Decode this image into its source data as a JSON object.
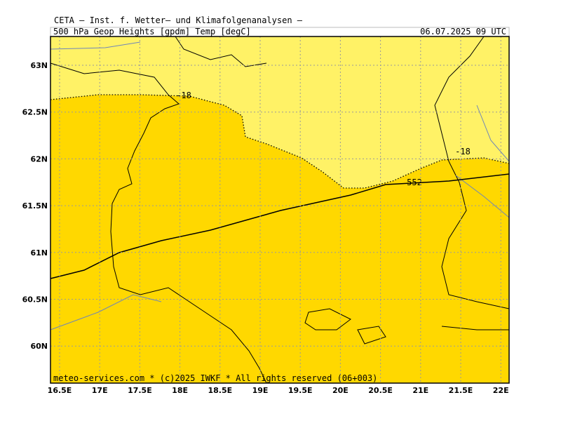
{
  "header": {
    "title": "CETA — Inst. f. Wetter— und Klimafolgenanalysen —",
    "field": "500_hPa_Geop_Heights_[gpdm]_Temp_[degC]",
    "valid": "06.07.2025 09 UTC"
  },
  "axes": {
    "longitudes": [
      "16.5E",
      "17E",
      "17.5E",
      "18E",
      "18.5E",
      "19E",
      "19.5E",
      "20E",
      "20.5E",
      "21E",
      "21.5E",
      "22E"
    ],
    "latitudes": [
      "63N",
      "62.5N",
      "62N",
      "61.5N",
      "61N",
      "60.5N",
      "60N"
    ]
  },
  "contour_labels": {
    "temperature": [
      "-18",
      "-18"
    ],
    "height": "552"
  },
  "footer": "meteo-services.com * (c)2025 IWKF * All rights reserved (06+003)"
}
